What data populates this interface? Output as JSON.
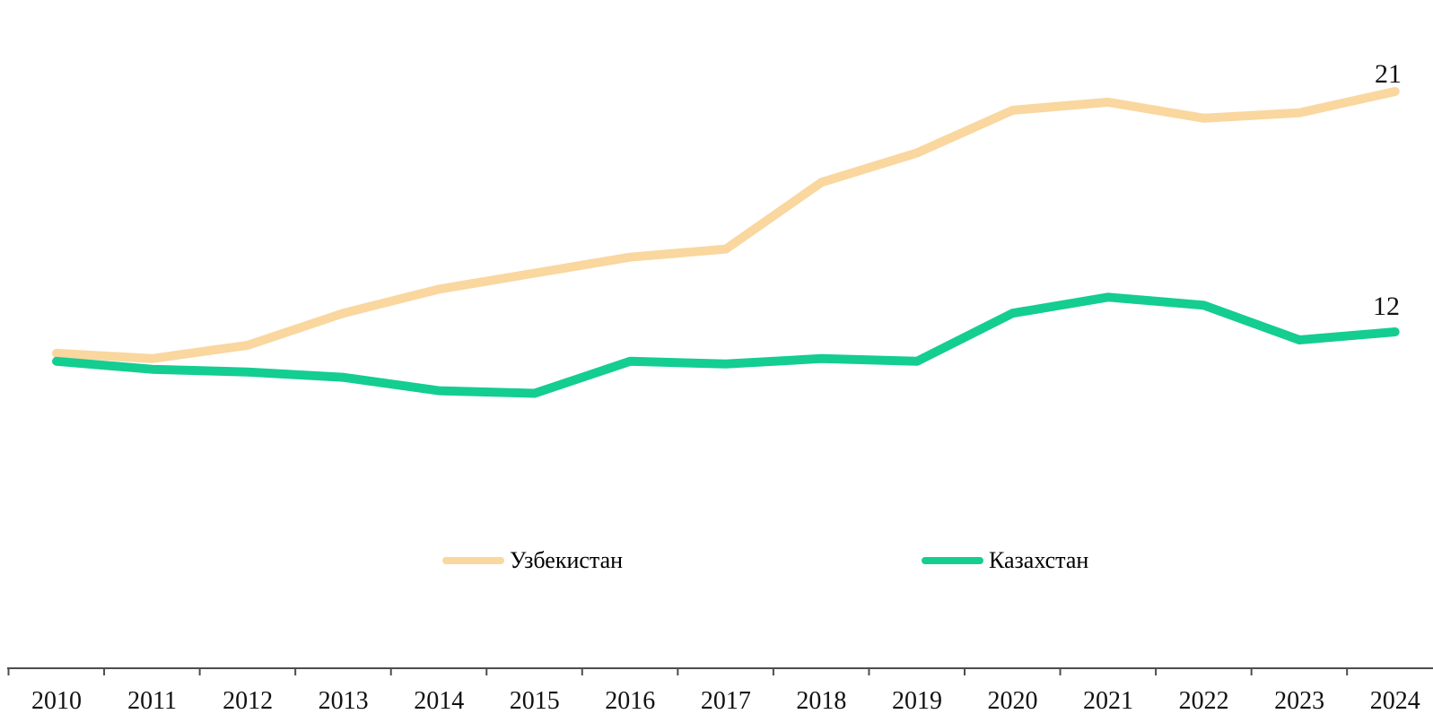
{
  "chart_data": {
    "type": "line",
    "title": "",
    "xlabel": "",
    "ylabel": "",
    "x": [
      "2010",
      "2011",
      "2012",
      "2013",
      "2014",
      "2015",
      "2016",
      "2017",
      "2018",
      "2019",
      "2020",
      "2021",
      "2022",
      "2023",
      "2024"
    ],
    "y_axis_visible": false,
    "grid": false,
    "legend_position": "bottom-center",
    "axis_color": "#4d4d4d",
    "label_color": "#111111",
    "series": [
      {
        "id": "uzbekistan",
        "name": "Узбекистан",
        "color": "#F9D79F",
        "end_label": "21",
        "values": [
          11.2,
          11.0,
          11.5,
          12.7,
          13.6,
          14.2,
          14.8,
          15.1,
          17.6,
          18.7,
          20.3,
          20.6,
          20.0,
          20.2,
          21.0
        ]
      },
      {
        "id": "kazakhstan",
        "name": "Казахстан",
        "color": "#14CD91",
        "end_label": "12",
        "values": [
          10.9,
          10.6,
          10.5,
          10.3,
          9.8,
          9.7,
          10.9,
          10.8,
          11.0,
          10.9,
          12.7,
          13.3,
          13.0,
          11.7,
          12.0
        ]
      }
    ]
  }
}
